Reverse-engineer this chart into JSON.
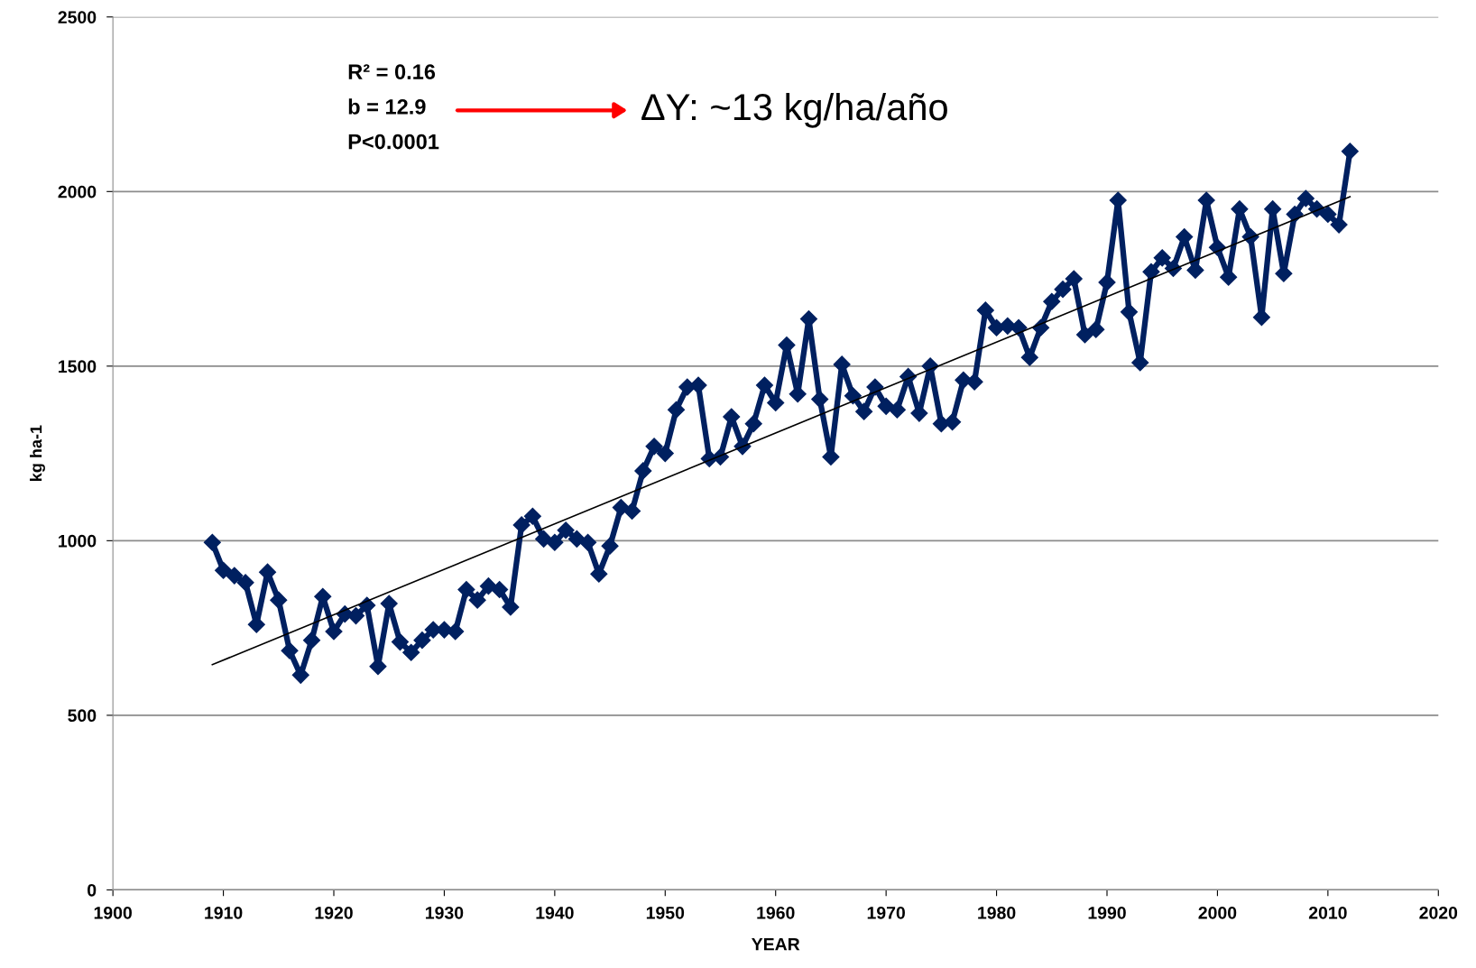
{
  "chart_data": {
    "type": "line",
    "xlabel": "YEAR",
    "ylabel": "kg ha-1",
    "xlim": [
      1900,
      2020
    ],
    "xticks": [
      1900,
      1910,
      1920,
      1930,
      1940,
      1950,
      1960,
      1970,
      1980,
      1990,
      2000,
      2010,
      2020
    ],
    "ylim": [
      0,
      2500
    ],
    "yticks": [
      0,
      500,
      1000,
      1500,
      2000,
      2500
    ],
    "grid": "y",
    "legend": false,
    "series": [
      {
        "color": "#002060",
        "marker": "diamond",
        "x": [
          1909,
          1910,
          1911,
          1912,
          1913,
          1914,
          1915,
          1916,
          1917,
          1918,
          1919,
          1920,
          1921,
          1922,
          1923,
          1924,
          1925,
          1926,
          1927,
          1928,
          1929,
          1930,
          1931,
          1932,
          1933,
          1934,
          1935,
          1936,
          1937,
          1938,
          1939,
          1940,
          1941,
          1942,
          1943,
          1944,
          1945,
          1946,
          1947,
          1948,
          1949,
          1950,
          1951,
          1952,
          1953,
          1954,
          1955,
          1956,
          1957,
          1958,
          1959,
          1960,
          1961,
          1962,
          1963,
          1964,
          1965,
          1966,
          1967,
          1968,
          1969,
          1970,
          1971,
          1972,
          1973,
          1974,
          1975,
          1976,
          1977,
          1978,
          1979,
          1980,
          1981,
          1982,
          1983,
          1984,
          1985,
          1986,
          1987,
          1988,
          1989,
          1990,
          1991,
          1992,
          1993,
          1994,
          1995,
          1996,
          1997,
          1998,
          1999,
          2000,
          2001,
          2002,
          2003,
          2004,
          2005,
          2006,
          2007,
          2008,
          2009,
          2010,
          2011,
          2012
        ],
        "values": [
          995,
          915,
          900,
          880,
          760,
          910,
          830,
          685,
          615,
          715,
          840,
          740,
          790,
          785,
          815,
          640,
          820,
          710,
          680,
          715,
          745,
          745,
          740,
          860,
          830,
          870,
          860,
          810,
          1045,
          1070,
          1005,
          995,
          1030,
          1005,
          995,
          905,
          985,
          1095,
          1085,
          1200,
          1270,
          1250,
          1375,
          1440,
          1445,
          1235,
          1240,
          1355,
          1270,
          1335,
          1445,
          1395,
          1560,
          1420,
          1635,
          1405,
          1240,
          1505,
          1415,
          1370,
          1440,
          1385,
          1375,
          1470,
          1365,
          1500,
          1335,
          1340,
          1460,
          1455,
          1660,
          1610,
          1615,
          1610,
          1525,
          1610,
          1685,
          1720,
          1750,
          1590,
          1605,
          1740,
          1975,
          1655,
          1510,
          1770,
          1810,
          1780,
          1870,
          1775,
          1975,
          1840,
          1755,
          1950,
          1870,
          1640,
          1950,
          1765,
          1935,
          1980,
          1950,
          1935,
          1905,
          2115
        ]
      },
      {
        "color": "#000000",
        "marker": "none",
        "x": [
          1909,
          2012
        ],
        "values": [
          645,
          1985
        ]
      }
    ],
    "annotations": [
      "R² = 0.16",
      "b = 12.9",
      "P<0.0001",
      "ΔY: ~13 kg/ha/año"
    ]
  }
}
